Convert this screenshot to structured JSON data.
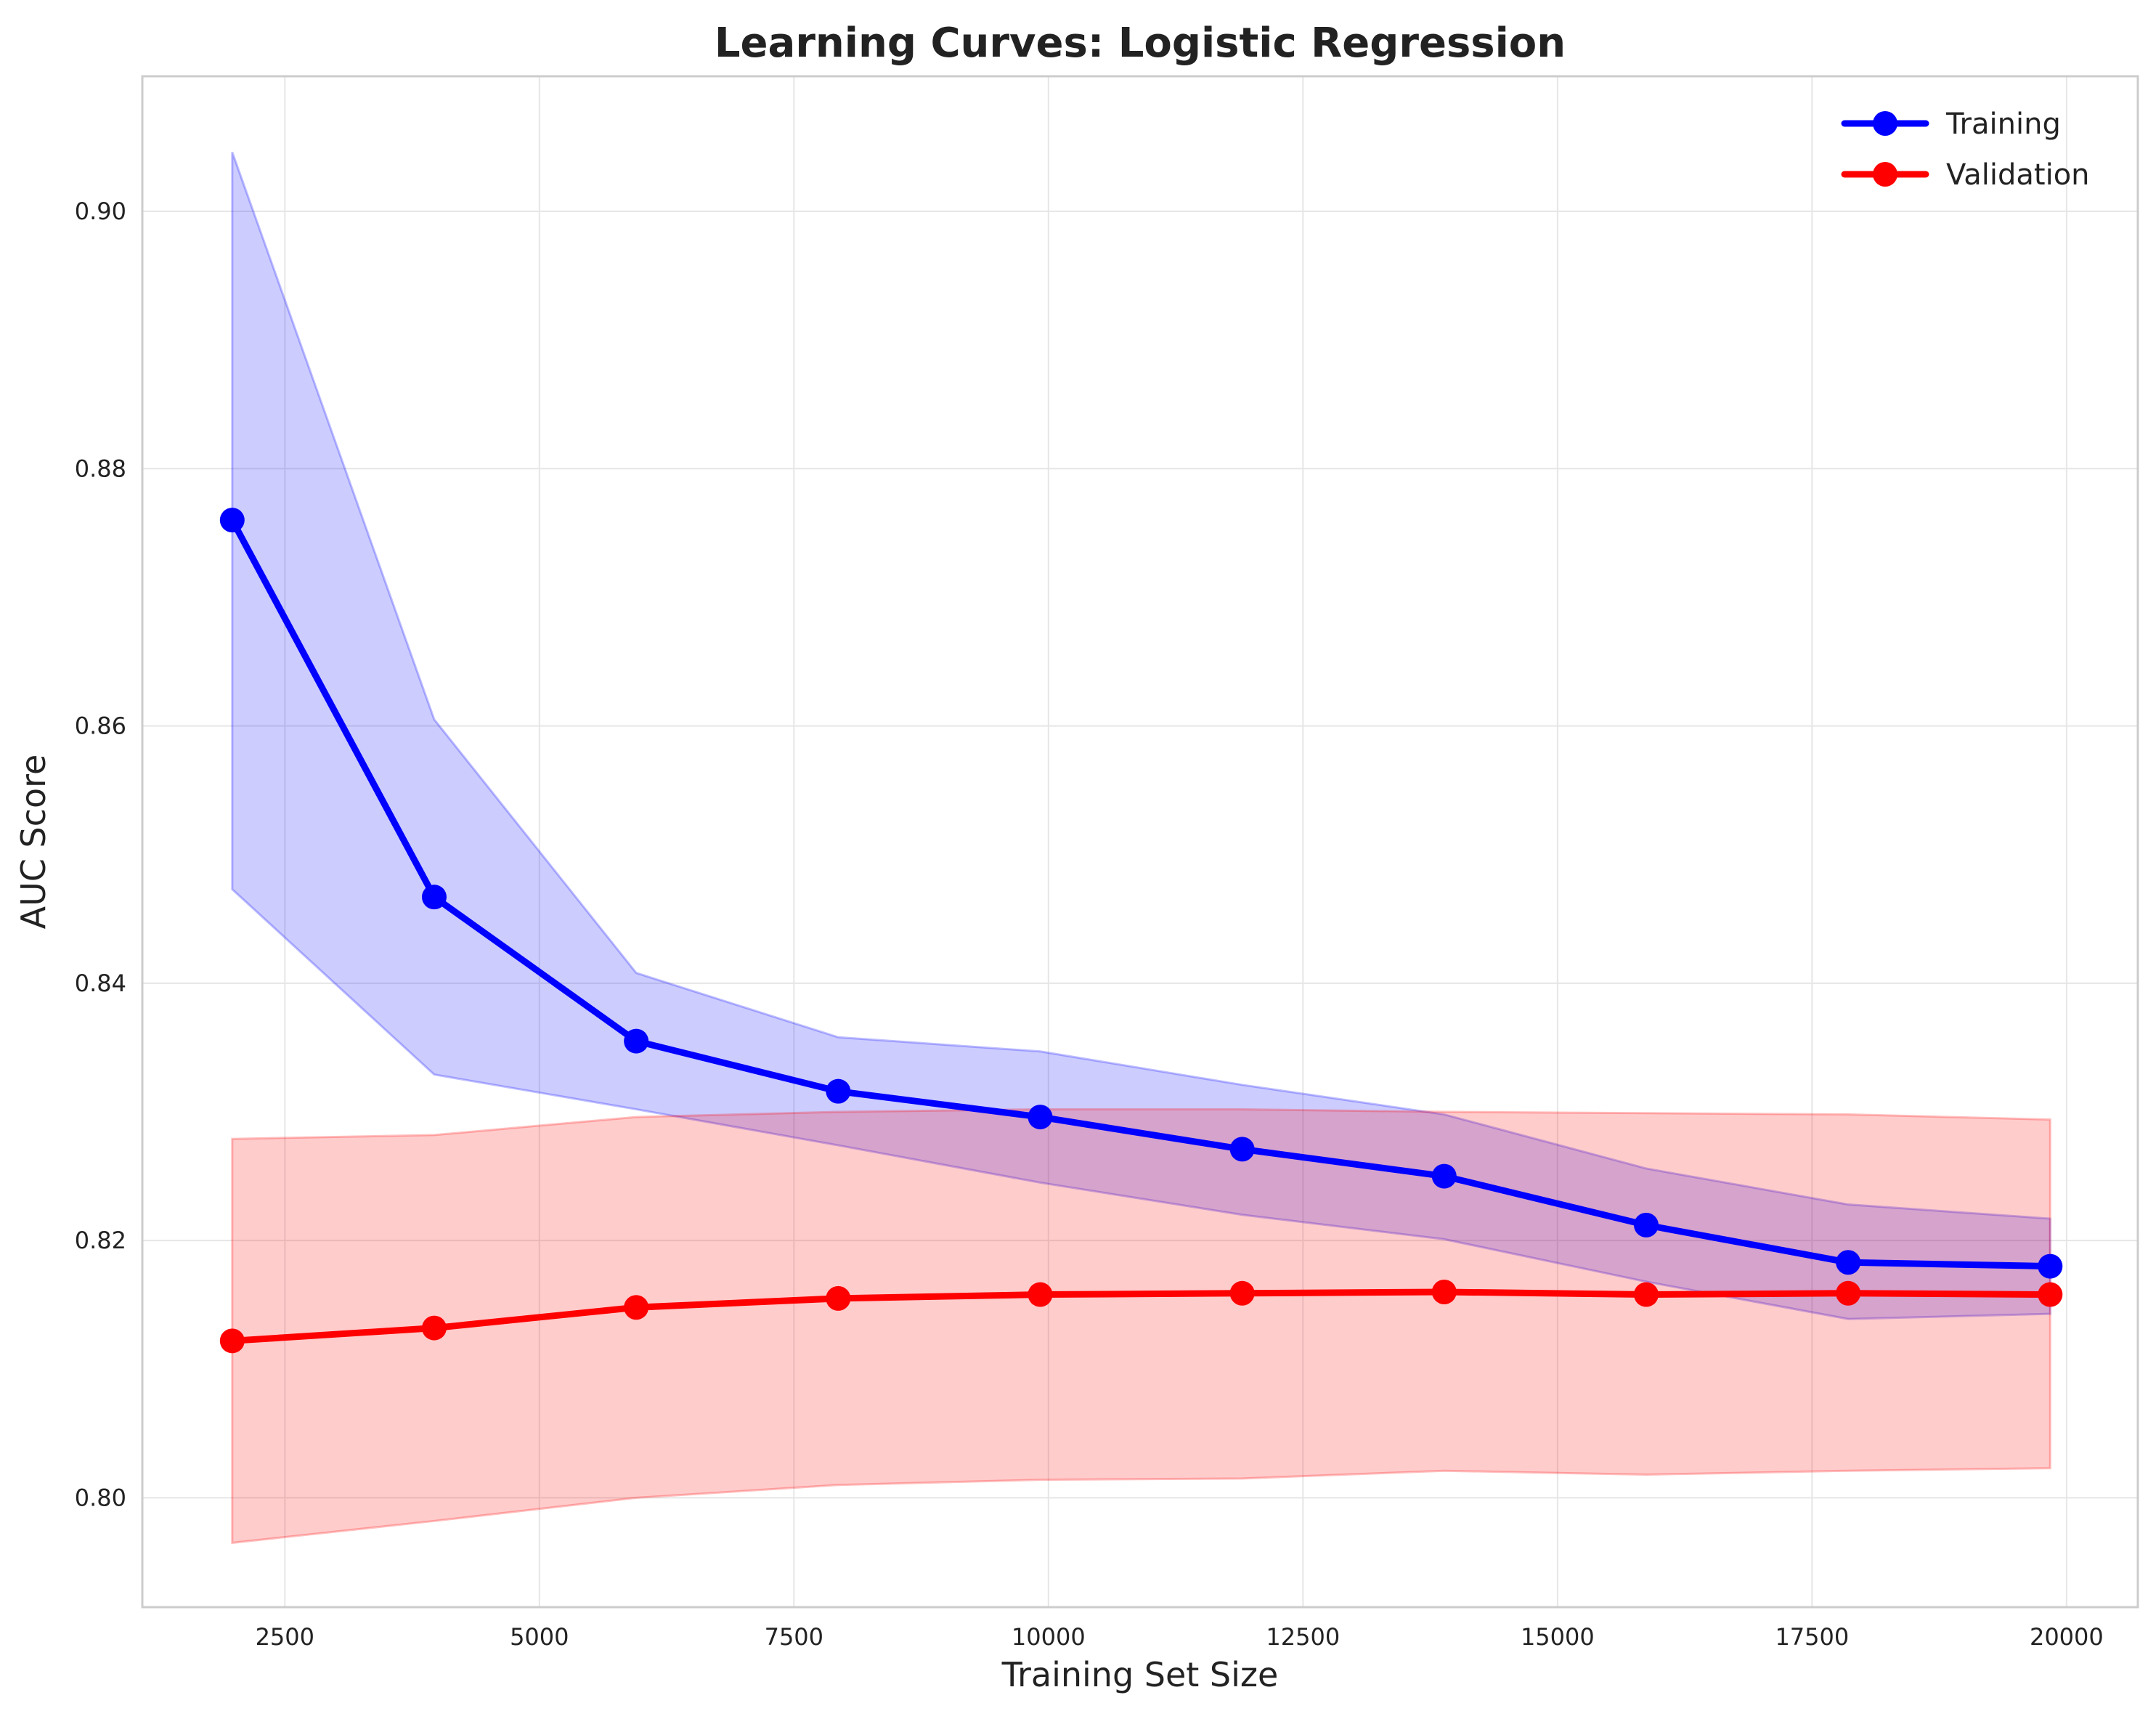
{
  "chart_data": {
    "type": "line",
    "title": "Learning Curves: Logistic Regression",
    "xlabel": "Training Set Size",
    "ylabel": "AUC Score",
    "xlim": [
      1100,
      20700
    ],
    "ylim": [
      0.7915,
      0.9105
    ],
    "xticks": [
      2500,
      5000,
      7500,
      10000,
      12500,
      15000,
      17500,
      20000
    ],
    "yticks": [
      0.8,
      0.82,
      0.84,
      0.86,
      0.88,
      0.9
    ],
    "xtick_labels": [
      "2500",
      "5000",
      "7500",
      "10000",
      "12500",
      "15000",
      "17500",
      "20000"
    ],
    "ytick_labels": [
      "0.80",
      "0.82",
      "0.84",
      "0.86",
      "0.88",
      "0.90"
    ],
    "grid": true,
    "legend_position": "top-right",
    "x": [
      1983,
      3967,
      5951,
      7935,
      9919,
      11903,
      13887,
      15871,
      17855,
      19839
    ],
    "series": [
      {
        "name": "Training",
        "color": "#0000ff",
        "values": [
          0.876,
          0.8467,
          0.8355,
          0.8316,
          0.8296,
          0.8271,
          0.825,
          0.8212,
          0.8183,
          0.818
        ],
        "band_upper": [
          0.9046,
          0.8605,
          0.8408,
          0.8358,
          0.8347,
          0.8321,
          0.8298,
          0.8256,
          0.8228,
          0.8217
        ],
        "band_lower": [
          0.8473,
          0.8329,
          0.8302,
          0.8274,
          0.8245,
          0.822,
          0.8201,
          0.8168,
          0.8139,
          0.8143
        ]
      },
      {
        "name": "Validation",
        "color": "#ff0000",
        "values": [
          0.8122,
          0.8132,
          0.8148,
          0.8155,
          0.8158,
          0.8159,
          0.816,
          0.8158,
          0.8159,
          0.8158
        ],
        "band_upper": [
          0.8279,
          0.8282,
          0.8296,
          0.83,
          0.8302,
          0.8302,
          0.83,
          0.8299,
          0.8298,
          0.8294
        ],
        "band_lower": [
          0.7965,
          0.7982,
          0.8,
          0.801,
          0.8014,
          0.8015,
          0.8021,
          0.8018,
          0.8021,
          0.8023
        ]
      }
    ]
  }
}
